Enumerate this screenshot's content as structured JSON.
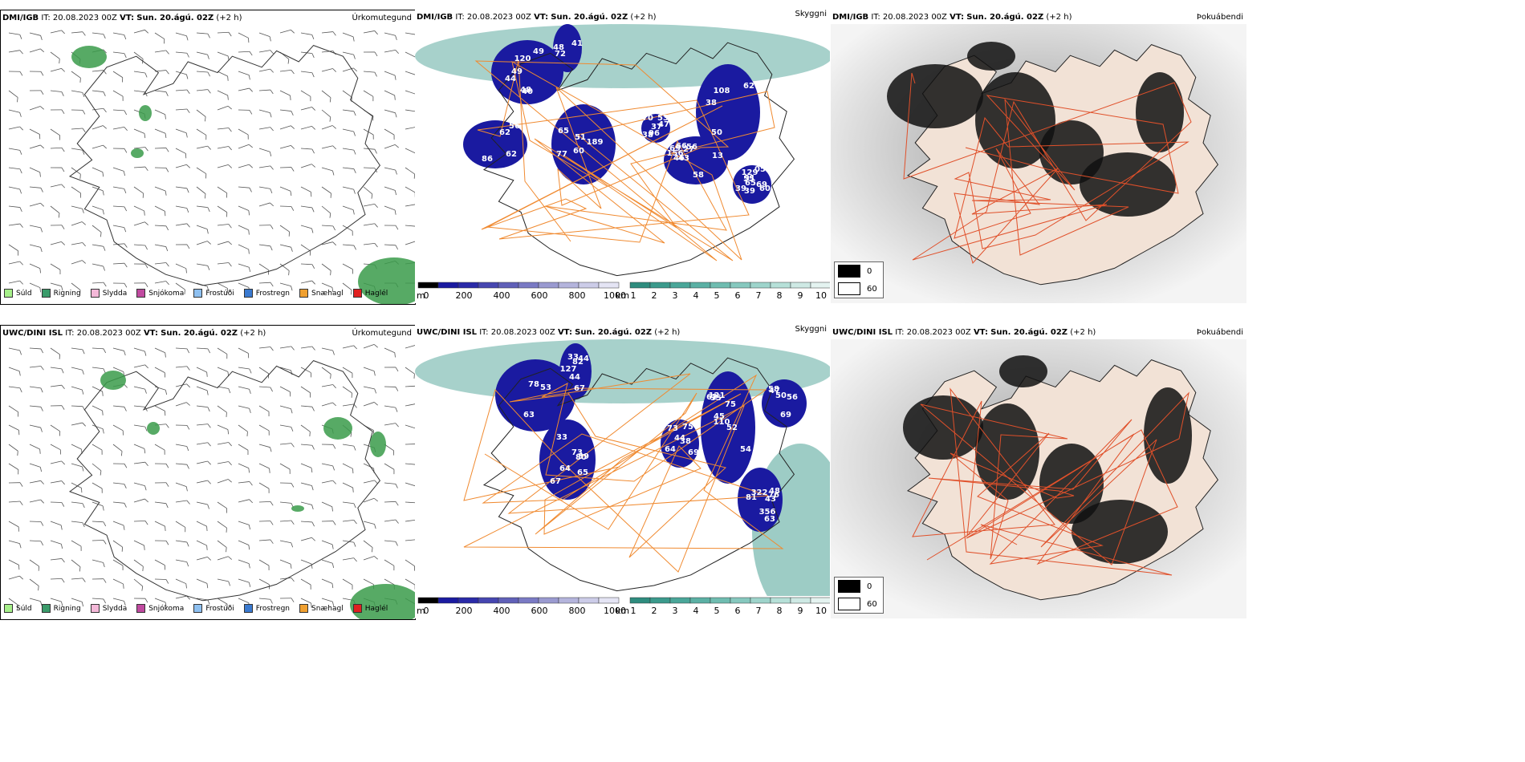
{
  "colors": {
    "precip_green": "#3a9b4a",
    "light_green": "#8ee07a",
    "cloud_navy": "#1a1aa0",
    "fog_teal": "#3b9a8c",
    "road_orange": "#f08a30",
    "land_beige": "#f2e2d6"
  },
  "rows": [
    {
      "model": "DMI/IGB",
      "it": "IT: 20.08.2023 00Z",
      "vt_label": "VT:",
      "vt": "Sun. 20.ágú. 02Z",
      "lead": "(+2 h)",
      "titles": [
        "Úrkomutegund",
        "Skyggni",
        "Þokuábendi"
      ],
      "cloud_numbers": [
        "77",
        "41",
        "37",
        "46",
        "44",
        "48",
        "43",
        "38",
        "65",
        "58",
        "13",
        "05",
        "108",
        "38",
        "40",
        "47",
        "49",
        "51",
        "39",
        "39",
        "69",
        "72",
        "60",
        "60",
        "55",
        "56",
        "70",
        "86",
        "62",
        "48",
        "50",
        "62",
        "49",
        "56",
        "65",
        "53",
        "69",
        "91",
        "96",
        "120",
        "62",
        "66",
        "189",
        "156",
        "129",
        "27"
      ]
    },
    {
      "model": "UWC/DINI ISL",
      "it": "IT: 20.08.2023 00Z",
      "vt_label": "VT:",
      "vt": "Sun. 20.ágú. 02Z",
      "lead": "(+2 h)",
      "titles": [
        "Úrkomutegund",
        "Skyggni",
        "Þokuábendi"
      ],
      "cloud_numbers": [
        "80",
        "39",
        "50",
        "38",
        "45",
        "44",
        "63",
        "52",
        "110",
        "33",
        "35",
        "64",
        "53",
        "81",
        "127",
        "54",
        "69",
        "67",
        "44",
        "56",
        "76",
        "78",
        "73",
        "58",
        "67",
        "47",
        "82",
        "65",
        "63",
        "75",
        "75",
        "69",
        "73",
        "121",
        "48",
        "44",
        "33",
        "43",
        "356",
        "322",
        "64",
        "62"
      ]
    }
  ],
  "precip_legend": [
    {
      "label": "Súld",
      "color": "#a6f08a"
    },
    {
      "label": "Rigning",
      "color": "#3a9b6a"
    },
    {
      "label": "Slydda",
      "color": "#f4b8d8"
    },
    {
      "label": "Snjókoma",
      "color": "#c04aa0"
    },
    {
      "label": "Frostúði",
      "color": "#8ec0f0"
    },
    {
      "label": "Frostregn",
      "color": "#3a7ad0"
    },
    {
      "label": "Snæhagl",
      "color": "#f0a030"
    },
    {
      "label": "Haglél",
      "color": "#e02020"
    }
  ],
  "cloudbase_scale": {
    "unit": "m",
    "ticks": [
      "0",
      "200",
      "400",
      "600",
      "800",
      "1000"
    ]
  },
  "visibility_scale": {
    "unit": "km",
    "ticks": [
      "1",
      "2",
      "3",
      "4",
      "5",
      "6",
      "7",
      "8",
      "9",
      "10"
    ]
  },
  "fog_key": {
    "low": "0",
    "high": "60"
  }
}
